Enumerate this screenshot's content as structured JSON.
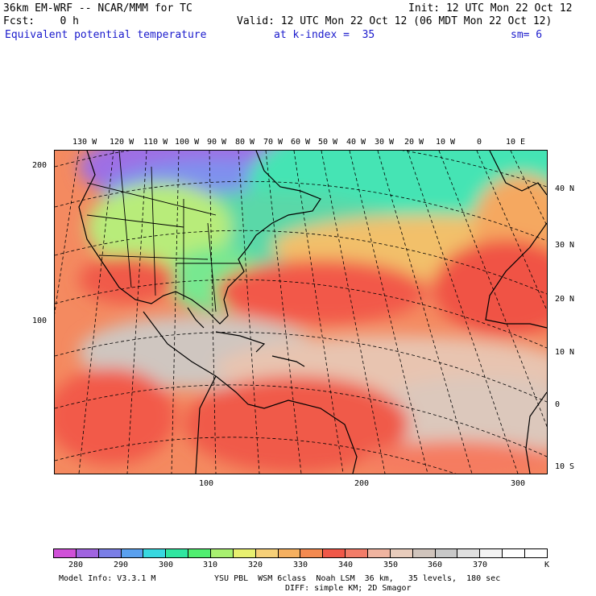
{
  "header": {
    "model_line": "36km EM-WRF -- NCAR/MMM for TC",
    "init_line": "Init: 12 UTC Mon 22 Oct 12",
    "fcst_line": "Fcst:    0 h",
    "valid_line": "Valid: 12 UTC Mon 22 Oct 12 (06 MDT Mon 22 Oct 12)",
    "field_name": "Equivalent potential temperature",
    "kindex": "at k-index =  35",
    "smoothing": "sm= 6"
  },
  "map": {
    "top_longitudes": [
      "130 W",
      "120 W",
      "110 W",
      "100 W",
      "90 W",
      "80 W",
      "70 W",
      "60 W",
      "50 W",
      "40 W",
      "30 W",
      "20 W",
      "10 W",
      "0",
      "10 E"
    ],
    "right_latitudes": [
      "40 N",
      "30 N",
      "20 N",
      "10 N",
      "0",
      "10 S"
    ],
    "left_grid_ticks": [
      "200",
      "100"
    ],
    "bottom_grid_ticks": [
      "100",
      "200",
      "300"
    ],
    "colors": {
      "cold": "#b44fd8",
      "cool": "#6d8ef0",
      "mild": "#35e6a6",
      "warm": "#f5b860",
      "hot": "#f25045",
      "humid": "#cfc6c0"
    }
  },
  "colorbar": {
    "labels": [
      "280",
      "290",
      "300",
      "310",
      "320",
      "330",
      "340",
      "350",
      "360",
      "370"
    ],
    "unit": "K",
    "colors": [
      "#d050d8",
      "#a064e0",
      "#7a7ee6",
      "#5aa0ee",
      "#38d8e0",
      "#30e6a0",
      "#50ee70",
      "#a8f070",
      "#e8f070",
      "#f7d078",
      "#f5b060",
      "#f48a50",
      "#f05848",
      "#f27c68",
      "#f0b4a0",
      "#e8ccbc",
      "#d0c4bc",
      "#c8c8c8",
      "#e0e0e0",
      "#f4f4f4",
      "#ffffff",
      "#ffffff"
    ]
  },
  "footer": {
    "model_info": "Model Info: V3.3.1 M",
    "physics": "YSU PBL  WSM 6class  Noah LSM  36 km,   35 levels,  180 sec",
    "diffusion": "DIFF: simple KM; 2D Smagor"
  }
}
